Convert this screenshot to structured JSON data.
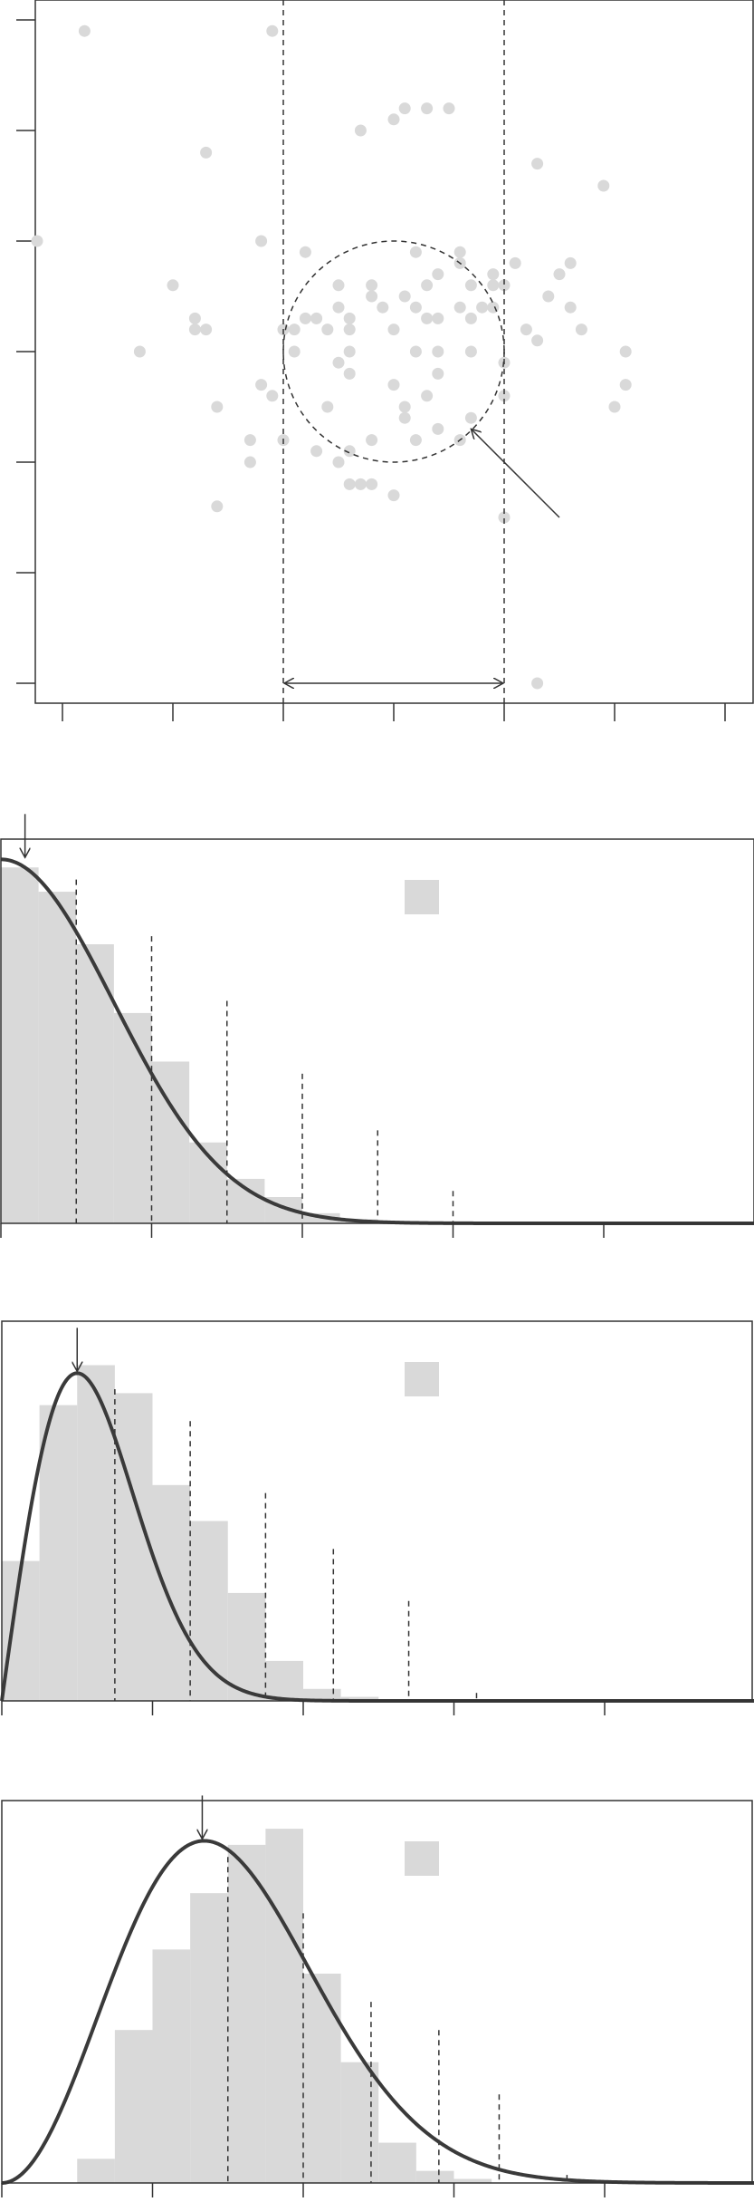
{
  "colors": {
    "points": "#d9d9d9",
    "bars": "#d9d9d9",
    "curve": "#3a3a3a",
    "axis": "#333333",
    "background": "#ffffff"
  },
  "chart_data": [
    {
      "type": "scatter",
      "title": "",
      "xlabel": "",
      "ylabel": "",
      "xlim": [
        -3.2,
        3.2
      ],
      "ylim": [
        -3.2,
        3.2
      ],
      "xticks": [
        -3,
        -2,
        -1,
        0,
        1,
        2,
        3
      ],
      "yticks": [
        -3,
        -2,
        -1,
        0,
        1,
        2,
        3
      ],
      "tick_labels_shown": false,
      "grid": false,
      "circle": {
        "center": [
          0,
          0
        ],
        "radius": 1,
        "style": "dashed"
      },
      "vertical_lines": [
        -1,
        1
      ],
      "double_arrow": {
        "from": [
          -1,
          -3
        ],
        "to": [
          1,
          -3
        ]
      },
      "pointer_arrow": {
        "from": [
          1.5,
          -1.5
        ],
        "to": [
          0.7,
          -0.7
        ]
      },
      "points": [
        [
          -2.8,
          2.9
        ],
        [
          -1.1,
          2.9
        ],
        [
          0.3,
          2.2
        ],
        [
          -0.3,
          2.0
        ],
        [
          0.0,
          2.1
        ],
        [
          0.1,
          2.2
        ],
        [
          0.5,
          2.2
        ],
        [
          -1.7,
          1.8
        ],
        [
          1.3,
          1.7
        ],
        [
          1.9,
          1.5
        ],
        [
          -3.3,
          1.0
        ],
        [
          -1.2,
          1.0
        ],
        [
          -0.8,
          0.9
        ],
        [
          0.2,
          0.9
        ],
        [
          0.6,
          0.9
        ],
        [
          0.6,
          0.8
        ],
        [
          1.1,
          0.8
        ],
        [
          1.6,
          0.8
        ],
        [
          -2.0,
          0.6
        ],
        [
          -0.5,
          0.6
        ],
        [
          -0.2,
          0.6
        ],
        [
          0.3,
          0.6
        ],
        [
          0.9,
          0.7
        ],
        [
          0.4,
          0.7
        ],
        [
          0.1,
          0.5
        ],
        [
          0.7,
          0.6
        ],
        [
          0.9,
          0.4
        ],
        [
          1.5,
          0.7
        ],
        [
          1.4,
          0.5
        ],
        [
          -1.8,
          0.3
        ],
        [
          -0.8,
          0.3
        ],
        [
          -0.4,
          0.2
        ],
        [
          0.3,
          0.3
        ],
        [
          1.6,
          0.4
        ],
        [
          -0.1,
          0.4
        ],
        [
          0.2,
          0.4
        ],
        [
          0.6,
          0.4
        ],
        [
          -0.5,
          0.4
        ],
        [
          -0.2,
          0.5
        ],
        [
          0.7,
          0.3
        ],
        [
          0.9,
          0.6
        ],
        [
          1.0,
          0.6
        ],
        [
          -1.8,
          0.2
        ],
        [
          -1.7,
          0.2
        ],
        [
          -1.0,
          0.2
        ],
        [
          -0.9,
          0.2
        ],
        [
          -0.4,
          0.3
        ],
        [
          0.0,
          0.2
        ],
        [
          0.4,
          0.3
        ],
        [
          0.8,
          0.4
        ],
        [
          -0.7,
          0.3
        ],
        [
          -0.6,
          0.2
        ],
        [
          1.2,
          0.2
        ],
        [
          1.3,
          0.1
        ],
        [
          1.7,
          0.2
        ],
        [
          -2.3,
          0.0
        ],
        [
          -0.9,
          0.0
        ],
        [
          -0.4,
          0.0
        ],
        [
          0.2,
          0.0
        ],
        [
          0.4,
          0.0
        ],
        [
          0.7,
          0.0
        ],
        [
          1.0,
          -0.1
        ],
        [
          2.1,
          0.0
        ],
        [
          -0.4,
          -0.2
        ],
        [
          0.0,
          -0.3
        ],
        [
          0.4,
          -0.2
        ],
        [
          -1.2,
          -0.3
        ],
        [
          -0.5,
          -0.1
        ],
        [
          2.1,
          -0.3
        ],
        [
          -1.1,
          -0.4
        ],
        [
          1.0,
          -0.4
        ],
        [
          0.1,
          -0.5
        ],
        [
          0.3,
          -0.4
        ],
        [
          2.0,
          -0.5
        ],
        [
          0.7,
          -0.6
        ],
        [
          -1.6,
          -0.5
        ],
        [
          -0.6,
          -0.5
        ],
        [
          0.1,
          -0.6
        ],
        [
          -1.0,
          -0.8
        ],
        [
          -0.2,
          -0.8
        ],
        [
          0.4,
          -0.7
        ],
        [
          -1.3,
          -0.8
        ],
        [
          -0.7,
          -0.9
        ],
        [
          -0.4,
          -0.9
        ],
        [
          0.2,
          -0.8
        ],
        [
          0.6,
          -0.8
        ],
        [
          -1.3,
          -1.0
        ],
        [
          -0.5,
          -1.0
        ],
        [
          -0.2,
          -1.2
        ],
        [
          -0.4,
          -1.2
        ],
        [
          -0.3,
          -1.2
        ],
        [
          0.0,
          -1.3
        ],
        [
          -1.6,
          -1.4
        ],
        [
          1.0,
          -1.5
        ],
        [
          1.3,
          -3.0
        ]
      ]
    },
    {
      "type": "bar",
      "title": "",
      "xlabel": "",
      "ylabel": "",
      "xlim": [
        0,
        5
      ],
      "ylim": [
        0,
        0.95
      ],
      "xticks": [
        0,
        1,
        2,
        3,
        4
      ],
      "tick_labels_shown": false,
      "bin_width": 0.25,
      "bin_values": [
        0.88,
        0.82,
        0.69,
        0.52,
        0.4,
        0.2,
        0.11,
        0.065,
        0.025,
        0.01,
        0.003
      ],
      "curve": "half_normal",
      "curve_scale": 0.75,
      "curve_peak": 0.9,
      "mode_arrow_x": 0.16,
      "vertical_dashes": [
        {
          "x": 0.5,
          "height": 0.85
        },
        {
          "x": 1.0,
          "height": 0.71
        },
        {
          "x": 1.5,
          "height": 0.55
        },
        {
          "x": 2.0,
          "height": 0.37
        },
        {
          "x": 2.5,
          "height": 0.23
        },
        {
          "x": 3.0,
          "height": 0.08
        }
      ],
      "legend": {
        "placement": "top-center",
        "swatch": "bars"
      }
    },
    {
      "type": "bar",
      "title": "",
      "xlabel": "",
      "ylabel": "",
      "xlim": [
        0,
        5
      ],
      "ylim": [
        0,
        0.95
      ],
      "xticks": [
        0,
        1,
        2,
        3,
        4
      ],
      "tick_labels_shown": false,
      "bin_width": 0.25,
      "bin_values": [
        0.35,
        0.74,
        0.84,
        0.77,
        0.54,
        0.45,
        0.27,
        0.1,
        0.03,
        0.01
      ],
      "curve": "rayleigh",
      "curve_scale": 0.5,
      "curve_peak": 0.82,
      "mode_arrow_x": 0.5,
      "vertical_dashes": [
        {
          "x": 0.75,
          "height": 0.78
        },
        {
          "x": 1.25,
          "height": 0.7
        },
        {
          "x": 1.75,
          "height": 0.52
        },
        {
          "x": 2.2,
          "height": 0.38
        },
        {
          "x": 2.7,
          "height": 0.25
        },
        {
          "x": 3.15,
          "height": 0.02
        }
      ],
      "legend": {
        "placement": "top-center",
        "swatch": "bars"
      }
    },
    {
      "type": "bar",
      "title": "",
      "xlabel": "",
      "ylabel": "",
      "xlim": [
        0,
        5
      ],
      "ylim": [
        0,
        0.95
      ],
      "xticks": [
        0,
        1,
        2,
        3,
        4
      ],
      "tick_labels_shown": false,
      "bin_width": 0.25,
      "bin_values": [
        0.0,
        0.0,
        0.06,
        0.38,
        0.58,
        0.72,
        0.84,
        0.88,
        0.52,
        0.3,
        0.1,
        0.03,
        0.01
      ],
      "curve": "chi_3",
      "curve_scale": 0.95,
      "curve_peak": 0.85,
      "mode_arrow_x": 1.33,
      "vertical_dashes": [
        {
          "x": 1.5,
          "height": 0.81
        },
        {
          "x": 2.0,
          "height": 0.67
        },
        {
          "x": 2.45,
          "height": 0.45
        },
        {
          "x": 2.9,
          "height": 0.38
        },
        {
          "x": 3.3,
          "height": 0.22
        },
        {
          "x": 3.75,
          "height": 0.02
        }
      ],
      "legend": {
        "placement": "top-center",
        "swatch": "bars"
      }
    }
  ]
}
